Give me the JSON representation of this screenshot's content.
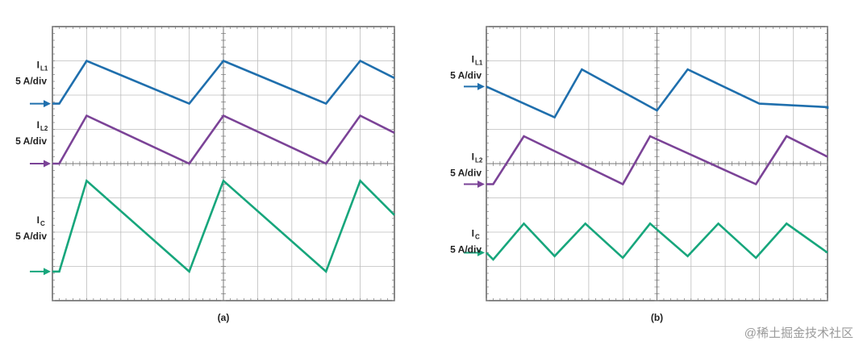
{
  "chart_data": [
    {
      "type": "line",
      "panel": "a",
      "caption": "(a)",
      "grid": true,
      "divisions": {
        "x": 10,
        "y": 8
      },
      "series": [
        {
          "label_main": "I",
          "label_sub": "L1",
          "scale": "5 A/div",
          "color": "#1f6fad",
          "marker_y": 2.25,
          "points": [
            [
              0,
              2.25
            ],
            [
              0.2,
              2.25
            ],
            [
              1,
              1.0
            ],
            [
              4,
              2.25
            ],
            [
              5,
              1.0
            ],
            [
              8,
              2.25
            ],
            [
              9,
              1.0
            ],
            [
              10,
              1.5
            ]
          ]
        },
        {
          "label_main": "I",
          "label_sub": "L2",
          "scale": "5 A/div",
          "color": "#7b4397",
          "marker_y": 4.0,
          "points": [
            [
              0,
              4.0
            ],
            [
              0.2,
              4.0
            ],
            [
              1,
              2.6
            ],
            [
              4,
              4.0
            ],
            [
              5,
              2.6
            ],
            [
              8,
              4.0
            ],
            [
              9,
              2.6
            ],
            [
              10,
              3.1
            ]
          ]
        },
        {
          "label_main": "I",
          "label_sub": "C",
          "scale": "5 A/div",
          "color": "#17a67c",
          "marker_y": 7.15,
          "points": [
            [
              0,
              7.15
            ],
            [
              0.2,
              7.15
            ],
            [
              1,
              4.5
            ],
            [
              4,
              7.15
            ],
            [
              5,
              4.5
            ],
            [
              8,
              7.15
            ],
            [
              9,
              4.5
            ],
            [
              10,
              5.5
            ]
          ]
        }
      ]
    },
    {
      "type": "line",
      "panel": "b",
      "caption": "(b)",
      "grid": true,
      "divisions": {
        "x": 10,
        "y": 8
      },
      "series": [
        {
          "label_main": "I",
          "label_sub": "L1",
          "scale": "5 A/div",
          "color": "#1f6fad",
          "marker_y": 1.75,
          "points": [
            [
              0,
              1.75
            ],
            [
              2,
              2.65
            ],
            [
              2.8,
              1.25
            ],
            [
              5,
              2.45
            ],
            [
              5.9,
              1.25
            ],
            [
              8,
              2.25
            ],
            [
              10,
              2.35
            ],
            [
              10,
              2.4
            ]
          ]
        },
        {
          "label_main": "I",
          "label_sub": "L2",
          "scale": "5 A/div",
          "color": "#7b4397",
          "marker_y": 4.6,
          "points": [
            [
              0,
              4.6
            ],
            [
              0.2,
              4.6
            ],
            [
              1.1,
              3.2
            ],
            [
              4,
              4.6
            ],
            [
              4.8,
              3.2
            ],
            [
              7.9,
              4.6
            ],
            [
              8.8,
              3.2
            ],
            [
              10,
              3.8
            ]
          ]
        },
        {
          "label_main": "I",
          "label_sub": "C",
          "scale": "5 A/div",
          "color": "#17a67c",
          "marker_y": 6.6,
          "points": [
            [
              0,
              6.6
            ],
            [
              0.2,
              6.8
            ],
            [
              1.1,
              5.75
            ],
            [
              2,
              6.7
            ],
            [
              2.9,
              5.75
            ],
            [
              4,
              6.75
            ],
            [
              4.8,
              5.75
            ],
            [
              5.9,
              6.7
            ],
            [
              6.8,
              5.75
            ],
            [
              7.9,
              6.75
            ],
            [
              8.8,
              5.75
            ],
            [
              10,
              6.6
            ]
          ]
        }
      ]
    }
  ],
  "watermark": "@稀土掘金技术社区"
}
